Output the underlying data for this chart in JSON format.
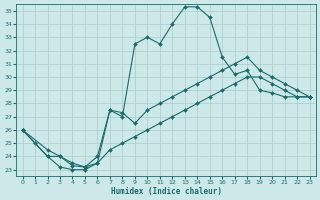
{
  "xlabel": "Humidex (Indice chaleur)",
  "bg_color": "#cde8e8",
  "grid_color": "#aacccc",
  "line_color": "#1a6b6b",
  "xlim": [
    -0.5,
    23.5
  ],
  "ylim": [
    22.5,
    35.5
  ],
  "xticks": [
    0,
    1,
    2,
    3,
    4,
    5,
    6,
    7,
    8,
    9,
    10,
    11,
    12,
    13,
    14,
    15,
    16,
    17,
    18,
    19,
    20,
    21,
    22,
    23
  ],
  "yticks": [
    23,
    24,
    25,
    26,
    27,
    28,
    29,
    30,
    31,
    32,
    33,
    34,
    35
  ],
  "line1_x": [
    0,
    1,
    2,
    3,
    4,
    5,
    6,
    7,
    8,
    9,
    10,
    11,
    12,
    13,
    14,
    15,
    16,
    17,
    18,
    19,
    20,
    21,
    22,
    23
  ],
  "line1_y": [
    26.0,
    25.0,
    24.0,
    23.2,
    23.0,
    23.0,
    23.5,
    27.5,
    27.0,
    32.5,
    33.0,
    32.5,
    34.0,
    35.3,
    35.3,
    34.5,
    31.5,
    30.2,
    30.5,
    29.0,
    28.8,
    28.5,
    28.5,
    28.5
  ],
  "line2_x": [
    0,
    2,
    3,
    4,
    5,
    6,
    7,
    8,
    9,
    10,
    11,
    12,
    13,
    14,
    15,
    16,
    17,
    18,
    19,
    20,
    21,
    22,
    23
  ],
  "line2_y": [
    26.0,
    24.0,
    24.0,
    23.3,
    23.2,
    24.0,
    27.5,
    27.3,
    26.5,
    27.5,
    28.0,
    28.5,
    29.0,
    29.5,
    30.0,
    30.5,
    31.0,
    31.5,
    30.5,
    30.0,
    29.5,
    29.0,
    28.5
  ],
  "line3_x": [
    0,
    2,
    3,
    4,
    5,
    6,
    7,
    8,
    9,
    10,
    11,
    12,
    13,
    14,
    15,
    16,
    17,
    18,
    19,
    20,
    21,
    22,
    23
  ],
  "line3_y": [
    26.0,
    24.5,
    24.0,
    23.5,
    23.2,
    23.5,
    24.5,
    25.0,
    25.5,
    26.0,
    26.5,
    27.0,
    27.5,
    28.0,
    28.5,
    29.0,
    29.5,
    30.0,
    30.0,
    29.5,
    29.0,
    28.5,
    28.5
  ]
}
